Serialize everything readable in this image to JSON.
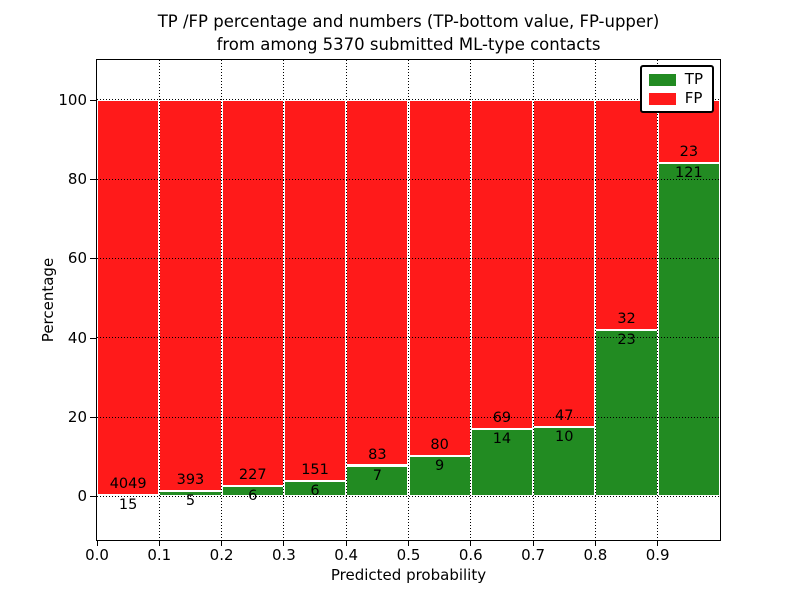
{
  "figure": {
    "title_line1": "TP /FP percentage and numbers (TP-bottom value, FP-upper)",
    "title_line2": "from among 5370 submitted ML-type contacts"
  },
  "chart_data": {
    "type": "bar",
    "stacked": true,
    "normalized": "each 0.1-wide bin scaled to 100%",
    "title": "TP /FP percentage and numbers (TP-bottom value, FP-upper)",
    "subtitle": "from among 5370 submitted ML-type contacts",
    "total_contacts": 5370,
    "xlabel": "Predicted probability",
    "ylabel": "Percentage",
    "xlim": [
      0.0,
      1.0
    ],
    "ylim": [
      -11,
      110
    ],
    "x_tick_labels": [
      "0.0",
      "0.1",
      "0.2",
      "0.3",
      "0.4",
      "0.5",
      "0.6",
      "0.7",
      "0.8",
      "0.9"
    ],
    "y_tick_values": [
      0,
      20,
      40,
      60,
      80,
      100
    ],
    "y_tick_labels": [
      "0",
      "20",
      "40",
      "60",
      "80",
      "100"
    ],
    "bin_edges": [
      0.0,
      0.1,
      0.2,
      0.3,
      0.4,
      0.5,
      0.6,
      0.7,
      0.8,
      0.9,
      1.0
    ],
    "series": [
      {
        "name": "TP",
        "color": "#228b22",
        "counts": [
          15,
          5,
          6,
          6,
          7,
          9,
          14,
          10,
          23,
          121
        ]
      },
      {
        "name": "FP",
        "color": "#ff1a1a",
        "counts": [
          4049,
          393,
          227,
          151,
          83,
          80,
          69,
          47,
          32,
          23
        ]
      }
    ],
    "tp_percent_per_bin": [
      0.37,
      1.26,
      2.58,
      3.82,
      7.78,
      10.11,
      16.87,
      17.54,
      41.82,
      84.03
    ],
    "grid": {
      "style": "dotted",
      "color": "#000000"
    },
    "bar_edge_color": "#ffffff",
    "legend_position": "upper right"
  },
  "legend": {
    "items": [
      {
        "label": "TP",
        "color": "#228b22"
      },
      {
        "label": "FP",
        "color": "#ff1a1a"
      }
    ]
  }
}
